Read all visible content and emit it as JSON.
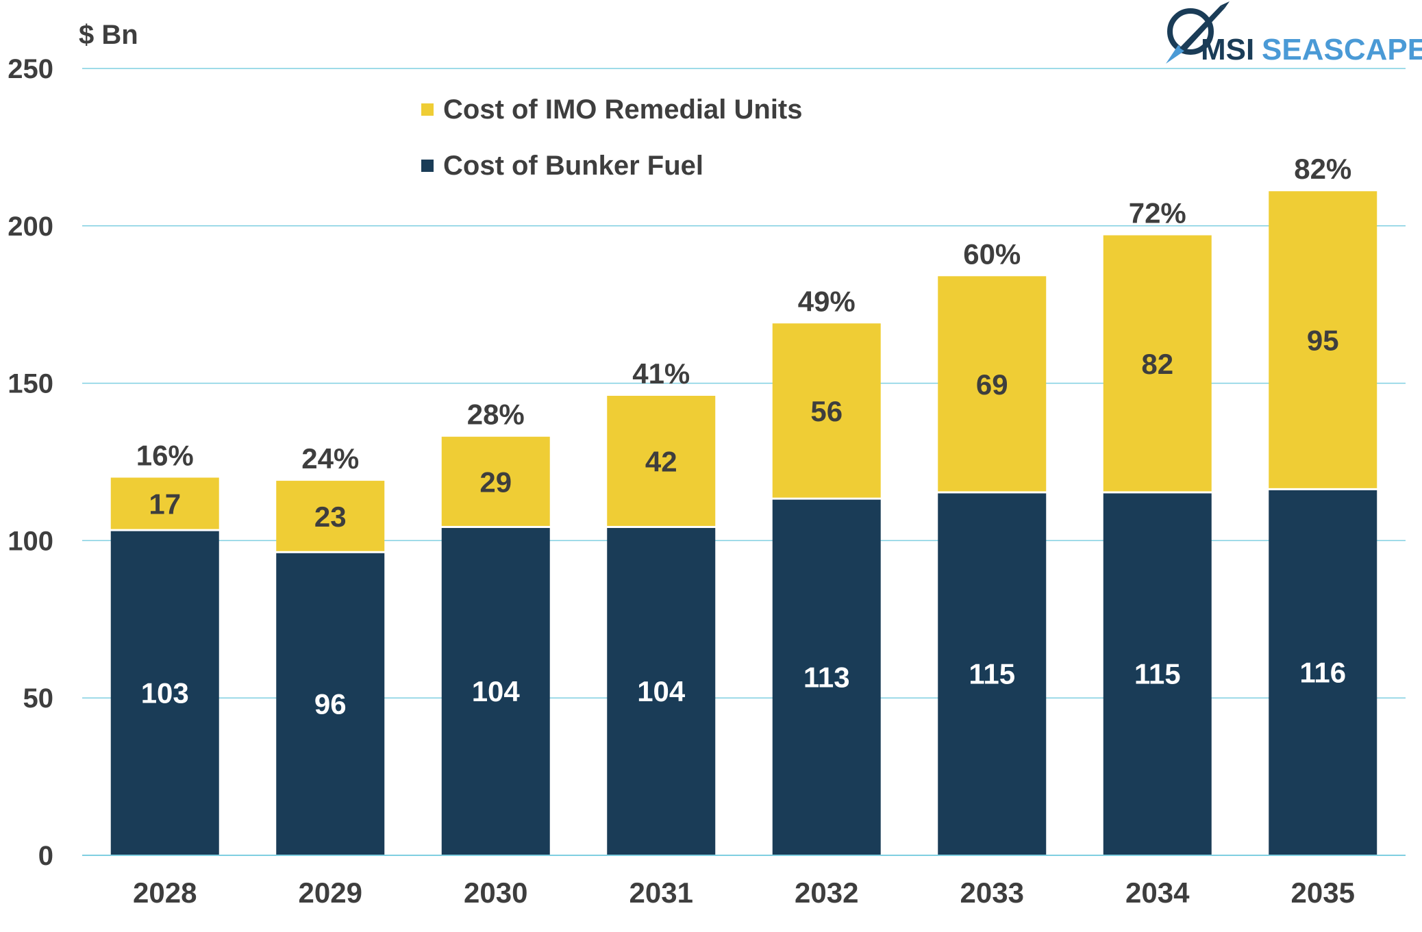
{
  "logo": {
    "text_primary": "MSI",
    "text_secondary": "SEASCAPE"
  },
  "colors": {
    "fuel": "#1a3c57",
    "imo": "#efcd35",
    "grid": "#7fcfe1",
    "text": "#3e3e3e",
    "bar_label_light": "#ffffff",
    "logo_dark": "#1a3c57",
    "logo_light": "#4a9ad6"
  },
  "chart_data": {
    "type": "bar",
    "stacked": true,
    "ylabel": "$ Bn",
    "ylim": [
      0,
      250
    ],
    "yticks": [
      0,
      50,
      100,
      150,
      200,
      250
    ],
    "grid": true,
    "legend_position": "top-center",
    "categories": [
      "2028",
      "2029",
      "2030",
      "2031",
      "2032",
      "2033",
      "2034",
      "2035"
    ],
    "series": [
      {
        "name": "Cost of Bunker Fuel",
        "values": [
          103,
          96,
          104,
          104,
          113,
          115,
          115,
          116
        ]
      },
      {
        "name": "Cost of IMO Remedial Units",
        "values": [
          17,
          23,
          29,
          42,
          56,
          69,
          82,
          95
        ]
      }
    ],
    "top_labels": [
      "16%",
      "24%",
      "28%",
      "41%",
      "49%",
      "60%",
      "72%",
      "82%"
    ]
  }
}
